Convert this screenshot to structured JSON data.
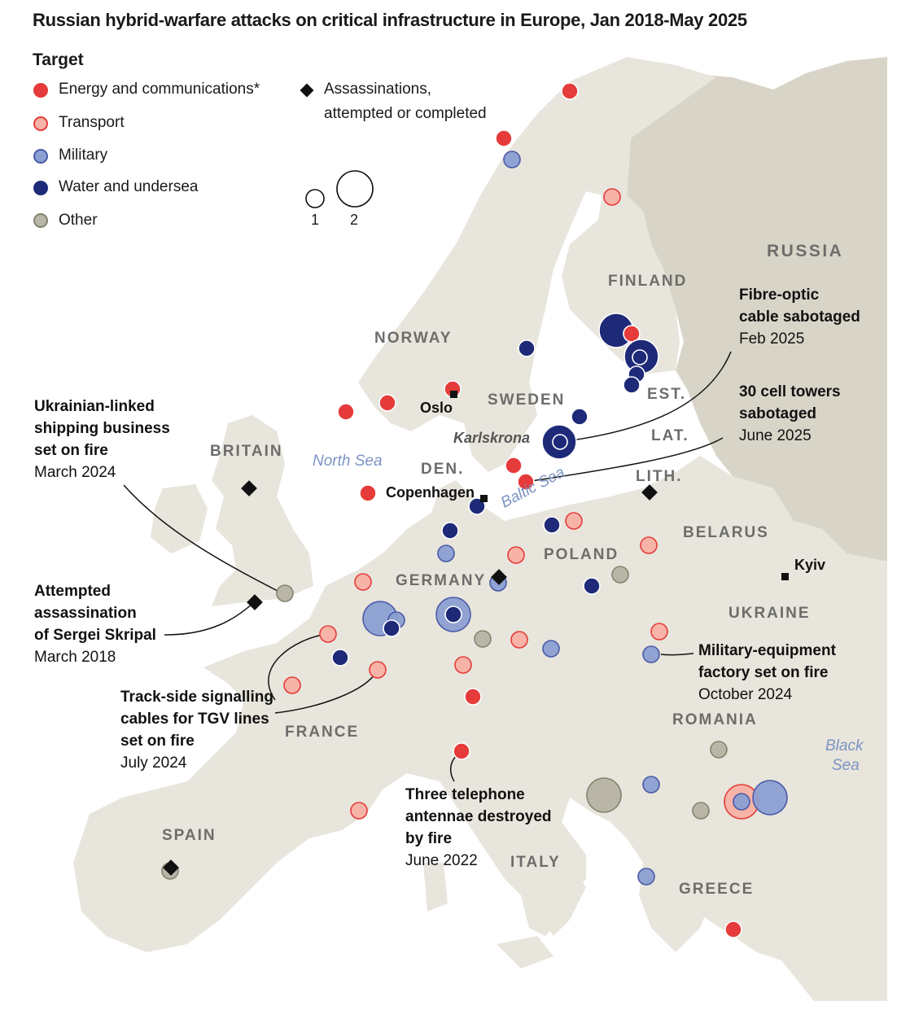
{
  "title": "Russian hybrid-warfare attacks on critical infrastructure in Europe, Jan 2018-May 2025",
  "legend": {
    "heading": "Target",
    "categories": [
      {
        "key": "energy",
        "label": "Energy and communications*",
        "color": "#e53b3a"
      },
      {
        "key": "transport",
        "label": "Transport",
        "color": "#f7b3a7"
      },
      {
        "key": "military",
        "label": "Military",
        "color": "#8b9fd1"
      },
      {
        "key": "water",
        "label": "Water and undersea",
        "color": "#1e2a78"
      },
      {
        "key": "other",
        "label": "Other",
        "color": "#b9b6a7"
      }
    ],
    "assassination_line1": "Assassinations,",
    "assassination_line2": "attempted or completed",
    "size_small": "1",
    "size_large": "2"
  },
  "countries": {
    "russia": "RUSSIA",
    "finland": "FINLAND",
    "norway": "NORWAY",
    "sweden": "SWEDEN",
    "est": "EST.",
    "lat": "LAT.",
    "lith": "LITH.",
    "britain": "BRITAIN",
    "den": "DEN.",
    "belarus": "BELARUS",
    "poland": "POLAND",
    "germany": "GERMANY",
    "ukraine": "UKRAINE",
    "france": "FRANCE",
    "romania": "ROMANIA",
    "spain": "SPAIN",
    "italy": "ITALY",
    "greece": "GREECE"
  },
  "seas": {
    "north": "North Sea",
    "baltic": "Baltic Sea",
    "black1": "Black",
    "black2": "Sea"
  },
  "cities": {
    "oslo": "Oslo",
    "copenhagen": "Copenhagen",
    "kyiv": "Kyiv",
    "karlskrona": "Karlskrona"
  },
  "annotations": {
    "fibre": {
      "l1": "Fibre-optic",
      "l2": "cable sabotaged",
      "date": "Feb 2025"
    },
    "cell": {
      "l1": "30 cell towers",
      "l2": "sabotaged",
      "date": "June 2025"
    },
    "ukr": {
      "l1": "Ukrainian-linked",
      "l2": "shipping business",
      "l3": "set on fire",
      "date": "March 2024"
    },
    "skripal": {
      "l1": "Attempted",
      "l2": "assassination",
      "l3": "of Sergei Skripal",
      "date": "March 2018"
    },
    "tgv": {
      "l1": "Track-side signalling",
      "l2": "cables for TGV lines",
      "l3": "set on fire",
      "date": "July 2024"
    },
    "milfac": {
      "l1": "Military-equipment",
      "l2": "factory set on fire",
      "date": "October 2024"
    },
    "tel": {
      "l1": "Three telephone",
      "l2": "antennae destroyed",
      "l3": "by fire",
      "date": "June 2022"
    }
  },
  "colors": {
    "land": "#e8e5dc",
    "russia_land": "#d8d5c8",
    "sea": "#ffffff",
    "border": "#ffffff",
    "stroke_light": "#ffffff"
  }
}
